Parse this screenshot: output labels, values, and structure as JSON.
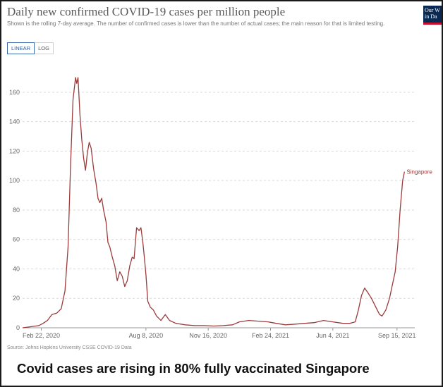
{
  "header": {
    "title": "Daily new confirmed COVID-19 cases per million people",
    "subtitle": "Shown is the rolling 7-day average. The number of confirmed cases is lower than the number of actual cases; the main reason for that is limited testing.",
    "logo_text": "Our W\nin Da"
  },
  "toggle": {
    "linear_label": "LINEAR",
    "log_label": "LOG",
    "selected": "LINEAR"
  },
  "footer": {
    "source": "Source: Johns Hopkins University CSSE COVID-19 Data",
    "caption": "Covid cases are rising in 80% fully vaccinated Singapore"
  },
  "colors": {
    "series": "#9b3b3b",
    "grid": "#d9d9d9",
    "axis_text": "#666666"
  },
  "chart_data": {
    "type": "line",
    "title": "Daily new confirmed COVID-19 cases per million people",
    "ylim": [
      0,
      170
    ],
    "yticks": [
      0,
      20,
      40,
      60,
      80,
      100,
      120,
      140,
      160
    ],
    "xlim": [
      "2020-01-23",
      "2021-10-09"
    ],
    "xticks": [
      {
        "date": "2020-02-22",
        "label": "Feb 22, 2020"
      },
      {
        "date": "2020-08-08",
        "label": "Aug 8, 2020"
      },
      {
        "date": "2020-11-16",
        "label": "Nov 16, 2020"
      },
      {
        "date": "2021-02-24",
        "label": "Feb 24, 2021"
      },
      {
        "date": "2021-06-04",
        "label": "Jun 4, 2021"
      },
      {
        "date": "2021-09-15",
        "label": "Sep 15, 2021"
      }
    ],
    "grid": "horizontal",
    "series": [
      {
        "name": "Singapore",
        "points": [
          [
            "2020-01-23",
            0
          ],
          [
            "2020-02-01",
            0.5
          ],
          [
            "2020-02-10",
            1
          ],
          [
            "2020-02-18",
            1.5
          ],
          [
            "2020-02-25",
            3
          ],
          [
            "2020-03-03",
            5
          ],
          [
            "2020-03-10",
            9
          ],
          [
            "2020-03-18",
            10
          ],
          [
            "2020-03-25",
            13
          ],
          [
            "2020-03-31",
            25
          ],
          [
            "2020-04-05",
            55
          ],
          [
            "2020-04-09",
            110
          ],
          [
            "2020-04-13",
            155
          ],
          [
            "2020-04-17",
            170
          ],
          [
            "2020-04-19",
            166
          ],
          [
            "2020-04-21",
            170
          ],
          [
            "2020-04-24",
            145
          ],
          [
            "2020-04-27",
            128
          ],
          [
            "2020-04-30",
            115
          ],
          [
            "2020-05-03",
            107
          ],
          [
            "2020-05-06",
            119
          ],
          [
            "2020-05-09",
            126
          ],
          [
            "2020-05-12",
            122
          ],
          [
            "2020-05-16",
            108
          ],
          [
            "2020-05-20",
            98
          ],
          [
            "2020-05-23",
            88
          ],
          [
            "2020-05-26",
            85
          ],
          [
            "2020-05-29",
            88
          ],
          [
            "2020-06-01",
            80
          ],
          [
            "2020-06-05",
            72
          ],
          [
            "2020-06-08",
            58
          ],
          [
            "2020-06-11",
            55
          ],
          [
            "2020-06-15",
            48
          ],
          [
            "2020-06-19",
            42
          ],
          [
            "2020-06-23",
            32
          ],
          [
            "2020-06-27",
            38
          ],
          [
            "2020-07-01",
            35
          ],
          [
            "2020-07-05",
            28
          ],
          [
            "2020-07-09",
            32
          ],
          [
            "2020-07-13",
            42
          ],
          [
            "2020-07-17",
            48
          ],
          [
            "2020-07-20",
            47
          ],
          [
            "2020-07-24",
            68
          ],
          [
            "2020-07-28",
            66
          ],
          [
            "2020-07-31",
            68
          ],
          [
            "2020-08-03",
            58
          ],
          [
            "2020-08-05",
            50
          ],
          [
            "2020-08-08",
            36
          ],
          [
            "2020-08-11",
            18
          ],
          [
            "2020-08-15",
            14
          ],
          [
            "2020-08-20",
            12
          ],
          [
            "2020-08-25",
            8
          ],
          [
            "2020-09-01",
            5
          ],
          [
            "2020-09-08",
            9
          ],
          [
            "2020-09-15",
            5
          ],
          [
            "2020-09-25",
            3
          ],
          [
            "2020-10-10",
            2
          ],
          [
            "2020-10-25",
            1.5
          ],
          [
            "2020-11-10",
            1.5
          ],
          [
            "2020-11-25",
            1.2
          ],
          [
            "2020-12-10",
            1.5
          ],
          [
            "2020-12-25",
            2
          ],
          [
            "2021-01-05",
            4
          ],
          [
            "2021-01-20",
            5
          ],
          [
            "2021-02-05",
            4.5
          ],
          [
            "2021-02-20",
            4
          ],
          [
            "2021-03-05",
            3
          ],
          [
            "2021-03-20",
            2
          ],
          [
            "2021-04-05",
            2.5
          ],
          [
            "2021-04-20",
            3
          ],
          [
            "2021-05-05",
            3.5
          ],
          [
            "2021-05-20",
            5
          ],
          [
            "2021-06-04",
            4
          ],
          [
            "2021-06-20",
            3
          ],
          [
            "2021-07-01",
            3
          ],
          [
            "2021-07-10",
            4
          ],
          [
            "2021-07-15",
            12
          ],
          [
            "2021-07-20",
            22
          ],
          [
            "2021-07-25",
            27
          ],
          [
            "2021-07-30",
            24
          ],
          [
            "2021-08-05",
            20
          ],
          [
            "2021-08-12",
            14
          ],
          [
            "2021-08-18",
            9
          ],
          [
            "2021-08-22",
            8
          ],
          [
            "2021-08-28",
            12
          ],
          [
            "2021-09-03",
            20
          ],
          [
            "2021-09-08",
            30
          ],
          [
            "2021-09-12",
            38
          ],
          [
            "2021-09-16",
            55
          ],
          [
            "2021-09-20",
            80
          ],
          [
            "2021-09-24",
            100
          ],
          [
            "2021-09-27",
            106
          ]
        ]
      }
    ]
  }
}
